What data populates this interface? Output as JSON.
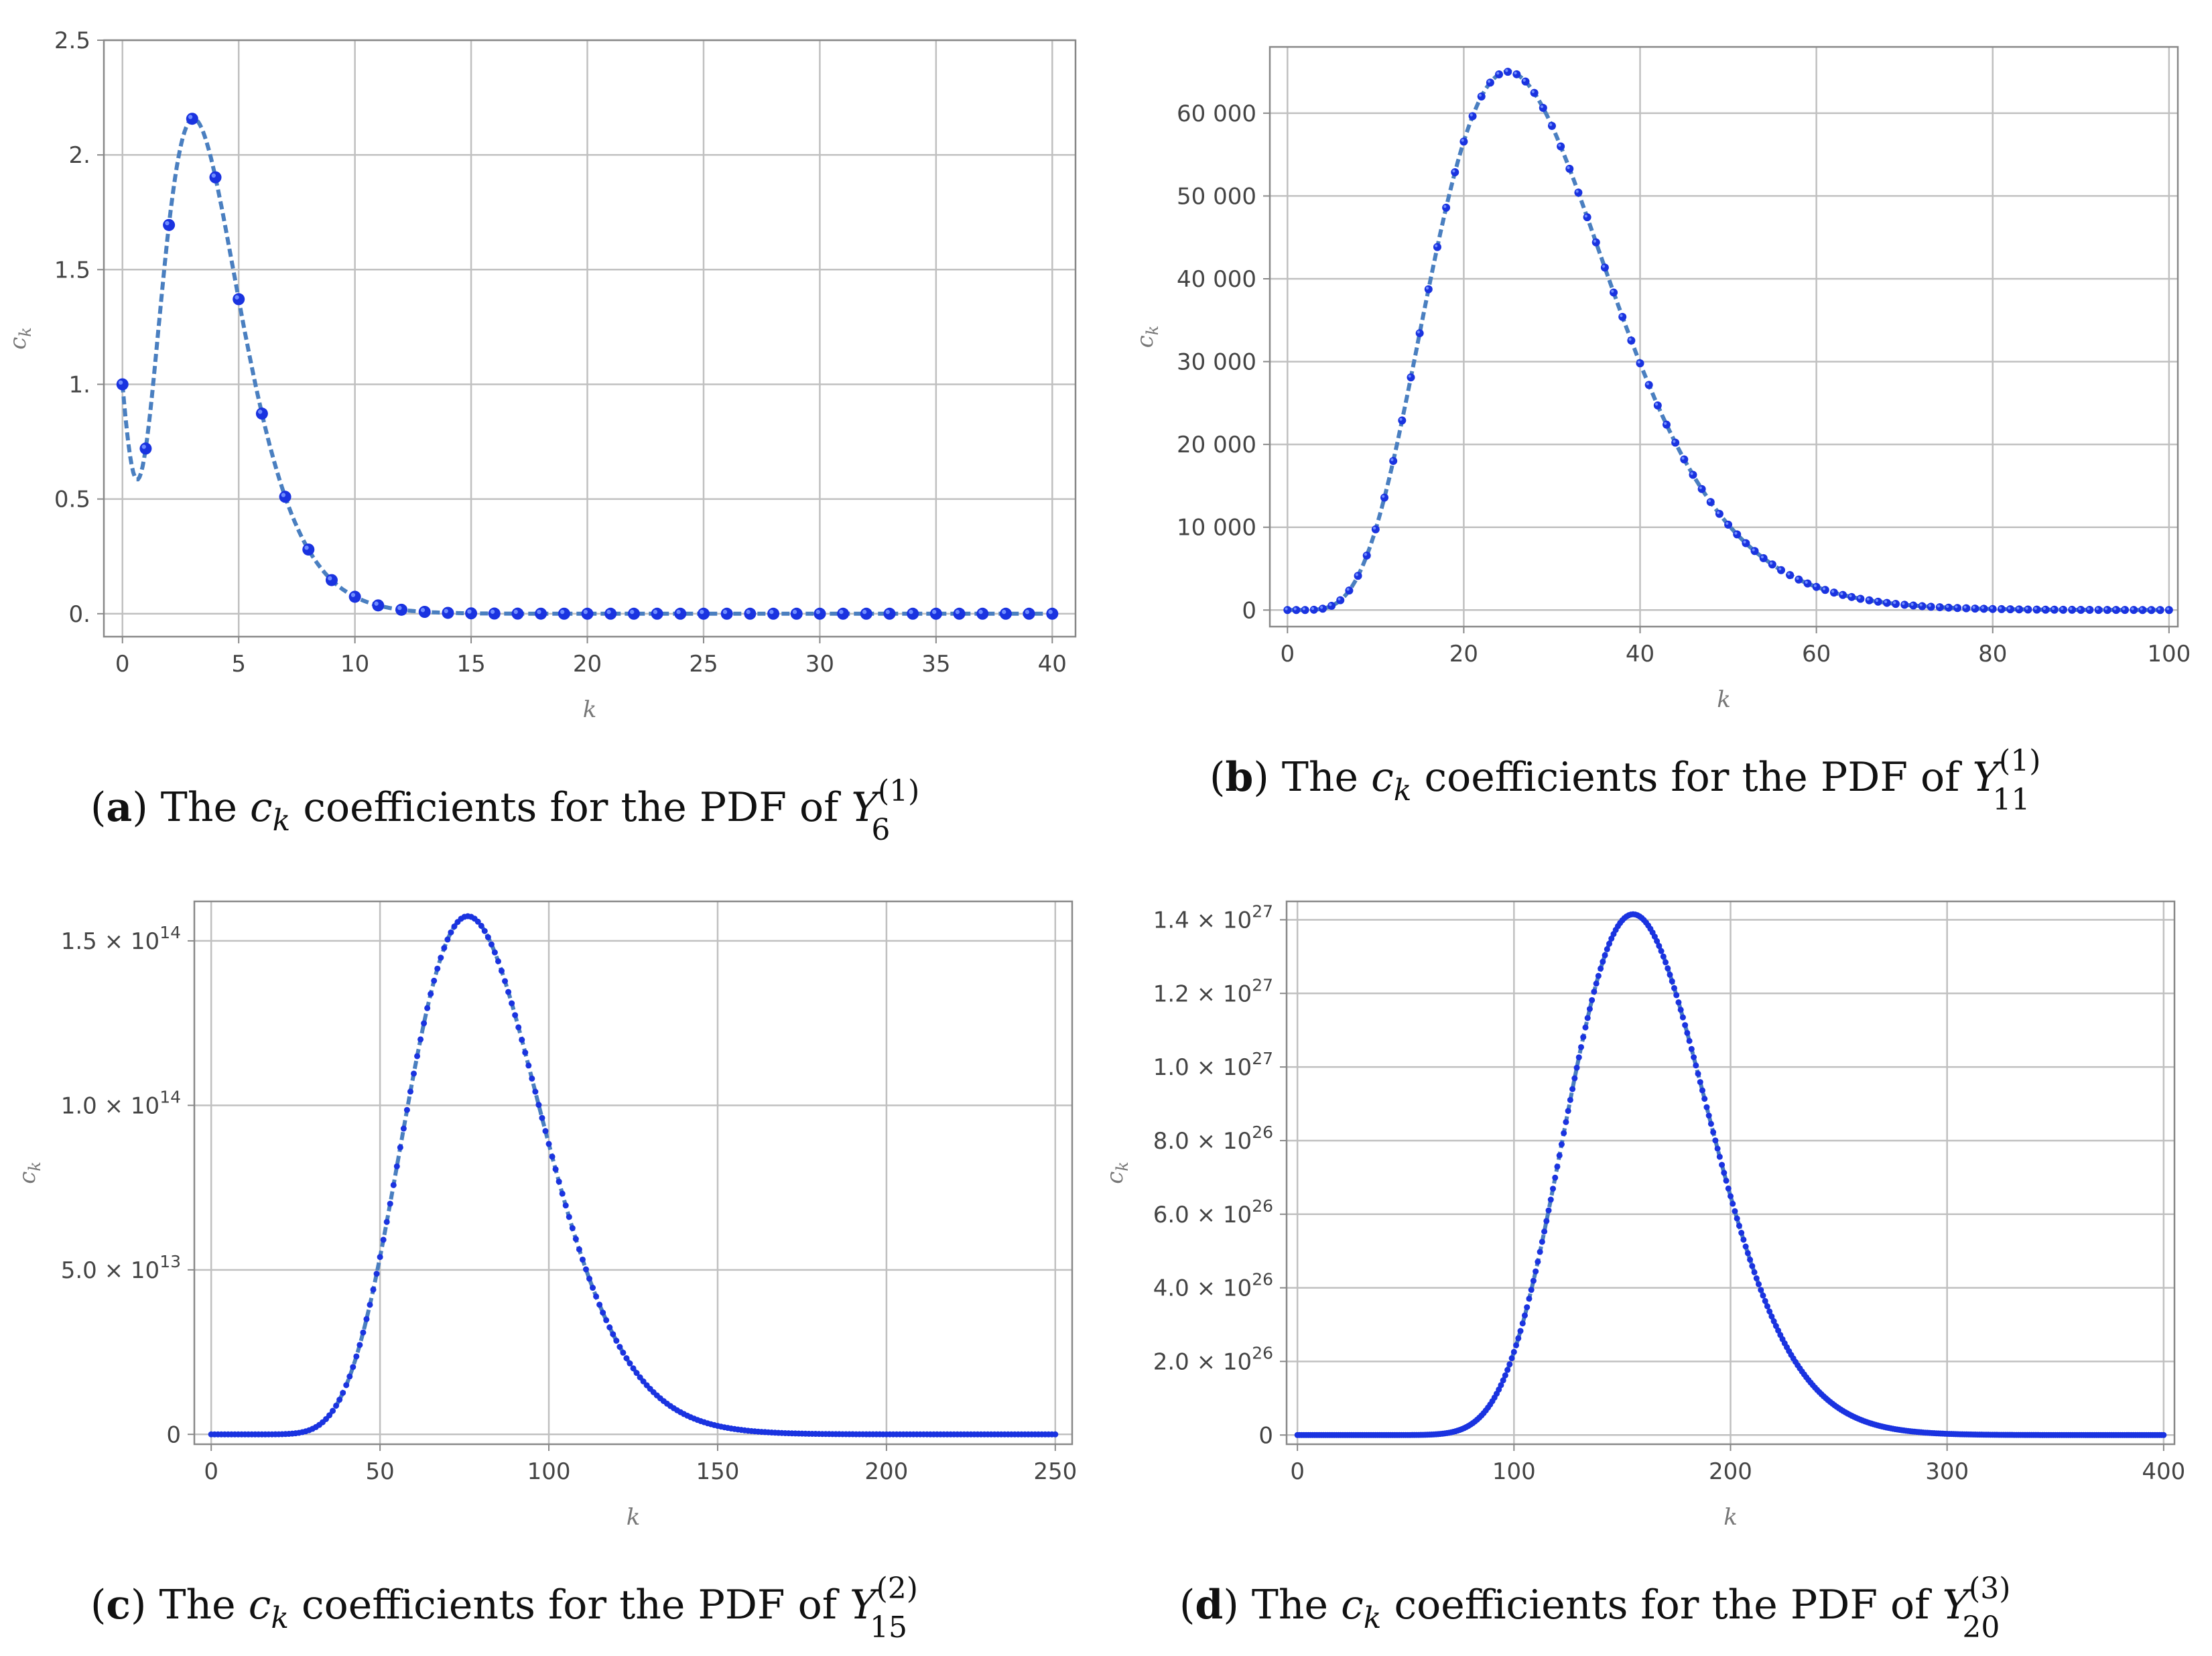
{
  "chart_data": [
    {
      "id": "a",
      "type": "scatter",
      "series_kind": "points-with-dashed-curve",
      "xlabel": "k",
      "ylabel": "c_k",
      "xlim": [
        -0.8,
        41
      ],
      "ylim": [
        -0.1,
        2.5
      ],
      "xticks": [
        0,
        5,
        10,
        15,
        20,
        25,
        30,
        35,
        40
      ],
      "xtick_labels": [
        "0",
        "5",
        "10",
        "15",
        "20",
        "25",
        "30",
        "35",
        "40"
      ],
      "yticks": [
        0,
        0.5,
        1,
        1.5,
        2,
        2.5
      ],
      "ytick_labels": [
        "0.",
        "0.5",
        "1.",
        "1.5",
        "2.",
        "2.5"
      ],
      "y_multiplier": 1,
      "model": {
        "shape": 3.0,
        "mode": 3,
        "peak": 2.19,
        "start": 1.0,
        "end": 0.002
      },
      "points": {
        "from": 0,
        "to": 40,
        "step": 1
      },
      "caption": {
        "letter": "a",
        "text": "The",
        "ck": "c",
        "ck_sub": "k",
        "rest": "coefficients for the PDF of",
        "Y": "Y",
        "sub": "6",
        "sup": "(1)"
      }
    },
    {
      "id": "b",
      "type": "scatter",
      "series_kind": "points-with-dashed-curve",
      "xlabel": "k",
      "ylabel": "c_k",
      "xlim": [
        -2,
        101
      ],
      "ylim": [
        -2000,
        68000
      ],
      "xticks": [
        0,
        20,
        40,
        60,
        80,
        100
      ],
      "xtick_labels": [
        "0",
        "20",
        "40",
        "60",
        "80",
        "100"
      ],
      "yticks": [
        0,
        10000,
        20000,
        30000,
        40000,
        50000,
        60000
      ],
      "ytick_labels": [
        "0",
        "10 000",
        "20 000",
        "30 000",
        "40 000",
        "50 000",
        "60 000"
      ],
      "y_multiplier": 1,
      "model": {
        "shape": 6.0,
        "mode": 25,
        "peak": 65000,
        "start": 0,
        "end": 350
      },
      "points": {
        "from": 0,
        "to": 100,
        "step": 1
      },
      "caption": {
        "letter": "b",
        "text": "The",
        "ck": "c",
        "ck_sub": "k",
        "rest": "coefficients for the PDF of",
        "Y": "Y",
        "sub": "11",
        "sup": "(1)"
      }
    },
    {
      "id": "c",
      "type": "scatter",
      "series_kind": "points-with-dashed-curve",
      "xlabel": "k",
      "ylabel": "c_k",
      "xlim": [
        -5,
        255
      ],
      "ylim": [
        -3000000000000.0,
        162000000000000.0
      ],
      "xticks": [
        0,
        50,
        100,
        150,
        200,
        250
      ],
      "xtick_labels": [
        "0",
        "50",
        "100",
        "150",
        "200",
        "250"
      ],
      "yticks": [
        0,
        50000000000000.0,
        100000000000000.0,
        150000000000000.0
      ],
      "ytick_labels": [
        {
          "m": "0",
          "e": ""
        },
        {
          "m": "5.0 × 10",
          "e": "13"
        },
        {
          "m": "1.0 × 10",
          "e": "14"
        },
        {
          "m": "1.5 × 10",
          "e": "14"
        }
      ],
      "y_multiplier": 1,
      "model": {
        "shape": 14.0,
        "mode": 76,
        "peak": 157500000000000.0,
        "start": 0,
        "end": 1000000000000.0
      },
      "points": {
        "from": 0,
        "to": 250,
        "step": 1
      },
      "caption": {
        "letter": "c",
        "text": "The",
        "ck": "c",
        "ck_sub": "k",
        "rest": "coefficients for the PDF of",
        "Y": "Y",
        "sub": "15",
        "sup": "(2)"
      }
    },
    {
      "id": "d",
      "type": "scatter",
      "series_kind": "points-with-dashed-curve",
      "xlabel": "k",
      "ylabel": "c_k",
      "xlim": [
        -5,
        405
      ],
      "ylim": [
        -2.5e+25,
        1.45e+27
      ],
      "xticks": [
        0,
        100,
        200,
        300,
        400
      ],
      "xtick_labels": [
        "0",
        "100",
        "200",
        "300",
        "400"
      ],
      "yticks": [
        0,
        2e+26,
        4e+26,
        6e+26,
        8e+26,
        1e+27,
        1.2e+27,
        1.4e+27
      ],
      "ytick_labels": [
        {
          "m": "0",
          "e": ""
        },
        {
          "m": "2.0 × 10",
          "e": "26"
        },
        {
          "m": "4.0 × 10",
          "e": "26"
        },
        {
          "m": "6.0 × 10",
          "e": "26"
        },
        {
          "m": "8.0 × 10",
          "e": "26"
        },
        {
          "m": "1.0 × 10",
          "e": "27"
        },
        {
          "m": "1.2 × 10",
          "e": "27"
        },
        {
          "m": "1.4 × 10",
          "e": "27"
        }
      ],
      "y_multiplier": 1,
      "model": {
        "shape": 22.0,
        "mode": 155,
        "peak": 1.415e+27,
        "start": 0,
        "end": 5e+24
      },
      "points": {
        "from": 0,
        "to": 400,
        "step": 1
      },
      "caption": {
        "letter": "d",
        "text": "The",
        "ck": "c",
        "ck_sub": "k",
        "rest": "coefficients for the PDF of",
        "Y": "Y",
        "sub": "20",
        "sup": "(3)"
      }
    }
  ],
  "colors": {
    "frame": "#888888",
    "grid": "#c0c0c0",
    "curve": "#4a7fc0",
    "point": "#1a33e0",
    "point_highlight": "#6f8cff"
  }
}
